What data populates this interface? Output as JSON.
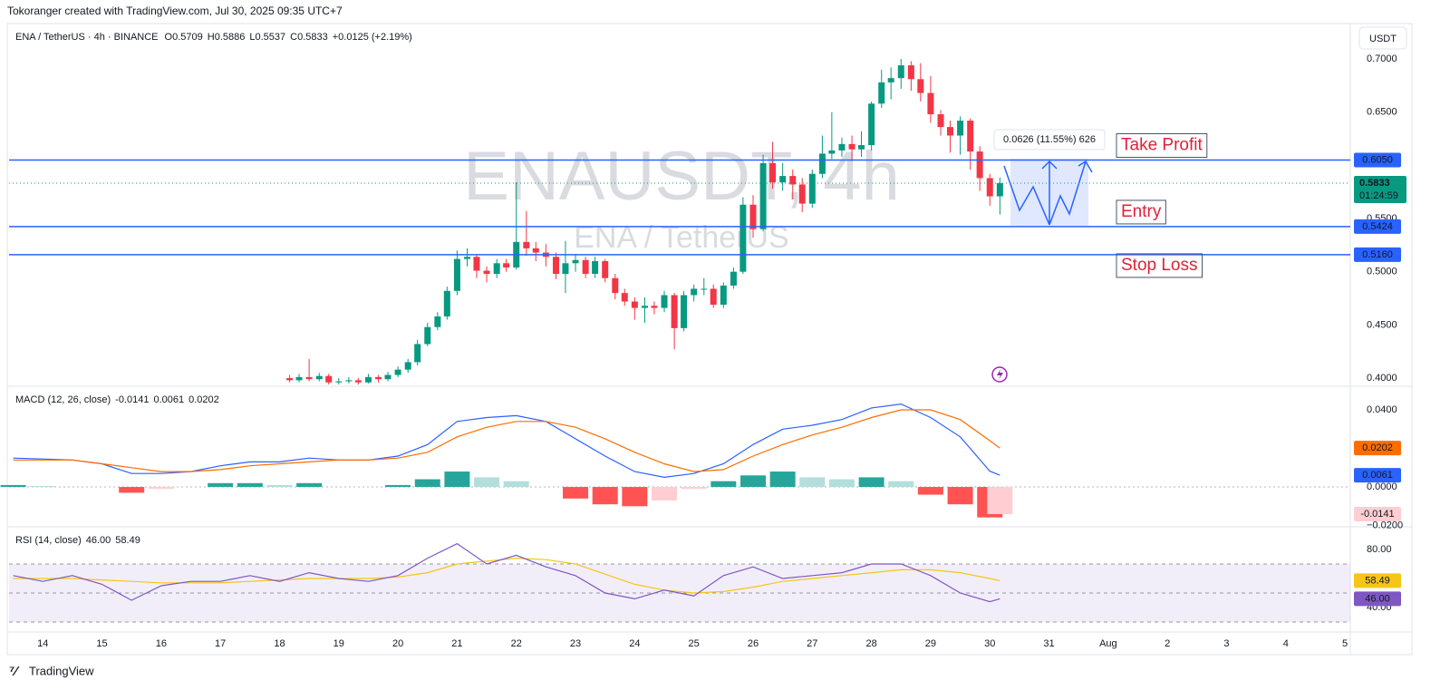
{
  "header": {
    "credit": "Tokoranger created with TradingView.com, Jul 30, 2025 09:35 UTC+7",
    "symbol": "ENA / TetherUS · 4h · BINANCE",
    "ohlc": [
      {
        "label": "O",
        "value": "0.5709"
      },
      {
        "label": "H",
        "value": "0.5886"
      },
      {
        "label": "L",
        "value": "0.5537"
      },
      {
        "label": "C",
        "value": "0.5833"
      }
    ],
    "change": "+0.0125 (+2.19%)",
    "currency": "USDT",
    "watermark": "ENAUSDT, 4h",
    "watermark_sub": "ENA / TetherUS",
    "logo": "TradingView"
  },
  "chart_data": [
    {
      "type": "candlestick",
      "ylim": [
        0.3932,
        0.7324
      ],
      "xlim": [
        13.43,
        36.09
      ],
      "yticks": [
        {
          "value": 0.4,
          "label": "0.4000"
        },
        {
          "value": 0.45,
          "label": "0.4500"
        },
        {
          "value": 0.5,
          "label": "0.5000"
        },
        {
          "value": 0.55,
          "label": "0.5500"
        },
        {
          "value": 0.65,
          "label": "0.6500"
        },
        {
          "value": 0.7,
          "label": "0.7000"
        }
      ],
      "xticks": [
        14,
        15,
        16,
        17,
        18,
        19,
        20,
        21,
        22,
        23,
        24,
        25,
        26,
        27,
        28,
        29,
        30,
        31,
        {
          "value": 32,
          "label": "Aug"
        },
        {
          "value": 33,
          "label": "2"
        },
        {
          "value": 34,
          "label": "3"
        },
        {
          "value": 35,
          "label": "4"
        },
        {
          "value": 36,
          "label": "5"
        }
      ],
      "up_color": "#089981",
      "down_color": "#f23645",
      "x": [
        18.17,
        18.33,
        18.5,
        18.67,
        18.83,
        19,
        19.17,
        19.33,
        19.5,
        19.67,
        19.83,
        20,
        20.17,
        20.33,
        20.5,
        20.67,
        20.83,
        21,
        21.17,
        21.33,
        21.5,
        21.67,
        21.83,
        22,
        22.17,
        22.33,
        22.5,
        22.67,
        22.83,
        23,
        23.17,
        23.33,
        23.5,
        23.67,
        23.83,
        24,
        24.17,
        24.33,
        24.5,
        24.67,
        24.83,
        25,
        25.17,
        25.33,
        25.5,
        25.67,
        25.83,
        26,
        26.17,
        26.33,
        26.5,
        26.67,
        26.83,
        27,
        27.17,
        27.33,
        27.5,
        27.67,
        27.83,
        28,
        28.17,
        28.33,
        28.5,
        28.67,
        28.83,
        29,
        29.17,
        29.33,
        29.5,
        29.67,
        29.83,
        30,
        30.17
      ],
      "open": [
        0.4,
        0.398,
        0.401,
        0.399,
        0.402,
        0.396,
        0.397,
        0.398,
        0.396,
        0.401,
        0.399,
        0.403,
        0.408,
        0.415,
        0.432,
        0.448,
        0.458,
        0.482,
        0.512,
        0.514,
        0.501,
        0.498,
        0.508,
        0.504,
        0.528,
        0.522,
        0.518,
        0.514,
        0.498,
        0.508,
        0.511,
        0.498,
        0.51,
        0.494,
        0.48,
        0.472,
        0.466,
        0.468,
        0.466,
        0.478,
        0.447,
        0.478,
        0.484,
        0.484,
        0.469,
        0.487,
        0.5,
        0.563,
        0.54,
        0.602,
        0.584,
        0.59,
        0.582,
        0.564,
        0.592,
        0.611,
        0.614,
        0.62,
        0.615,
        0.619,
        0.658,
        0.678,
        0.682,
        0.694,
        0.681,
        0.668,
        0.648,
        0.636,
        0.628,
        0.642,
        0.613,
        0.588,
        0.5709
      ],
      "high": [
        0.403,
        0.404,
        0.418,
        0.405,
        0.404,
        0.4,
        0.401,
        0.4,
        0.404,
        0.403,
        0.406,
        0.411,
        0.418,
        0.436,
        0.452,
        0.462,
        0.486,
        0.52,
        0.522,
        0.516,
        0.505,
        0.512,
        0.512,
        0.584,
        0.557,
        0.528,
        0.526,
        0.518,
        0.529,
        0.516,
        0.514,
        0.514,
        0.512,
        0.498,
        0.484,
        0.476,
        0.476,
        0.472,
        0.482,
        0.48,
        0.482,
        0.488,
        0.494,
        0.488,
        0.49,
        0.504,
        0.57,
        0.572,
        0.61,
        0.622,
        0.602,
        0.596,
        0.588,
        0.596,
        0.628,
        0.65,
        0.626,
        0.628,
        0.632,
        0.66,
        0.69,
        0.692,
        0.7,
        0.698,
        0.696,
        0.684,
        0.652,
        0.642,
        0.646,
        0.644,
        0.618,
        0.592,
        0.5886
      ],
      "low": [
        0.396,
        0.396,
        0.397,
        0.397,
        0.394,
        0.394,
        0.395,
        0.394,
        0.395,
        0.396,
        0.397,
        0.401,
        0.405,
        0.412,
        0.43,
        0.445,
        0.455,
        0.478,
        0.505,
        0.494,
        0.49,
        0.494,
        0.5,
        0.502,
        0.515,
        0.51,
        0.505,
        0.493,
        0.48,
        0.5,
        0.494,
        0.494,
        0.49,
        0.474,
        0.468,
        0.455,
        0.452,
        0.46,
        0.462,
        0.427,
        0.444,
        0.472,
        0.478,
        0.466,
        0.466,
        0.484,
        0.498,
        0.532,
        0.538,
        0.578,
        0.576,
        0.568,
        0.556,
        0.56,
        0.588,
        0.606,
        0.608,
        0.604,
        0.608,
        0.614,
        0.654,
        0.662,
        0.672,
        0.67,
        0.66,
        0.64,
        0.628,
        0.612,
        0.61,
        0.596,
        0.576,
        0.562,
        0.5537
      ],
      "close": [
        0.398,
        0.401,
        0.399,
        0.402,
        0.396,
        0.397,
        0.398,
        0.396,
        0.401,
        0.399,
        0.403,
        0.408,
        0.415,
        0.432,
        0.448,
        0.458,
        0.482,
        0.512,
        0.514,
        0.501,
        0.498,
        0.508,
        0.504,
        0.528,
        0.522,
        0.518,
        0.514,
        0.498,
        0.508,
        0.511,
        0.498,
        0.51,
        0.494,
        0.48,
        0.472,
        0.466,
        0.468,
        0.466,
        0.478,
        0.447,
        0.478,
        0.484,
        0.484,
        0.469,
        0.487,
        0.5,
        0.563,
        0.54,
        0.602,
        0.584,
        0.59,
        0.582,
        0.564,
        0.592,
        0.611,
        0.614,
        0.62,
        0.615,
        0.619,
        0.658,
        0.678,
        0.682,
        0.694,
        0.681,
        0.668,
        0.648,
        0.636,
        0.628,
        0.642,
        0.613,
        0.588,
        0.5709,
        0.5833
      ],
      "countdown": "01:24:59",
      "levels": [
        {
          "label": "Take Profit",
          "value": 0.605,
          "value_label": "0.6050"
        },
        {
          "label": "Entry",
          "value": 0.5424,
          "value_label": "0.5424"
        },
        {
          "label": "Stop Loss",
          "value": 0.516,
          "value_label": "0.5160"
        }
      ],
      "measure": "0.0626 (11.55%) 626"
    },
    {
      "type": "macd",
      "title": "MACD (12, 26, close)",
      "ylim": [
        -0.0202,
        0.0513
      ],
      "yticks": [
        {
          "value": 0.04,
          "label": "0.0400"
        },
        {
          "value": 0,
          "label": "0.0000"
        },
        {
          "value": -0.02,
          "label": "−0.0200"
        }
      ],
      "x": [
        13.5,
        14,
        14.5,
        15,
        15.5,
        16,
        16.5,
        17,
        17.5,
        18,
        18.5,
        19,
        19.5,
        20,
        20.5,
        21,
        21.5,
        22,
        22.5,
        23,
        23.5,
        24,
        24.5,
        25,
        25.5,
        26,
        26.5,
        27,
        27.5,
        28,
        28.5,
        29,
        29.5,
        30,
        30.17
      ],
      "series": [
        {
          "name": "histogram",
          "color": "#26a69a",
          "values": [
            0.001,
            0.0005,
            0,
            0,
            -0.003,
            -0.001,
            0,
            0.002,
            0.002,
            0.001,
            0.002,
            0,
            0,
            0.001,
            0.004,
            0.008,
            0.005,
            0.003,
            0,
            -0.006,
            -0.009,
            -0.01,
            -0.007,
            -0.001,
            0.003,
            0.006,
            0.008,
            0.005,
            0.004,
            0.005,
            0.003,
            -0.004,
            -0.009,
            -0.0158,
            -0.0141
          ]
        },
        {
          "name": "macd",
          "color": "#2962ff",
          "values": [
            0.015,
            0.0145,
            0.014,
            0.012,
            0.007,
            0.007,
            0.008,
            0.011,
            0.013,
            0.013,
            0.015,
            0.014,
            0.014,
            0.016,
            0.022,
            0.034,
            0.036,
            0.037,
            0.034,
            0.025,
            0.016,
            0.008,
            0.005,
            0.007,
            0.012,
            0.022,
            0.03,
            0.032,
            0.035,
            0.041,
            0.043,
            0.036,
            0.026,
            0.0082,
            0.0061
          ]
        },
        {
          "name": "signal",
          "color": "#ff6d00",
          "values": [
            0.014,
            0.014,
            0.014,
            0.012,
            0.01,
            0.008,
            0.008,
            0.009,
            0.011,
            0.012,
            0.013,
            0.014,
            0.014,
            0.015,
            0.018,
            0.026,
            0.031,
            0.034,
            0.034,
            0.031,
            0.025,
            0.018,
            0.012,
            0.008,
            0.009,
            0.016,
            0.022,
            0.027,
            0.031,
            0.036,
            0.04,
            0.04,
            0.035,
            0.024,
            0.0202
          ]
        }
      ]
    },
    {
      "type": "rsi",
      "title": "RSI (14, close)",
      "ylim": [
        23.75,
        93.75
      ],
      "yticks": [
        {
          "value": 80,
          "label": "80.00"
        },
        {
          "value": 40,
          "label": "40.00"
        }
      ],
      "bands": [
        70,
        50,
        30
      ],
      "x": [
        13.5,
        14,
        14.5,
        15,
        15.5,
        16,
        16.5,
        17,
        17.5,
        18,
        18.5,
        19,
        19.5,
        20,
        20.5,
        21,
        21.5,
        22,
        22.5,
        23,
        23.5,
        24,
        24.5,
        25,
        25.5,
        26,
        26.5,
        27,
        27.5,
        28,
        28.5,
        29,
        29.5,
        30,
        30.17
      ],
      "series": [
        {
          "name": "rsi",
          "color": "#7e57c2",
          "values": [
            62,
            58,
            62,
            56,
            45,
            55,
            58,
            58,
            62,
            58,
            64,
            60,
            58,
            62,
            74,
            84,
            70,
            76,
            68,
            62,
            50,
            46,
            52,
            48,
            62,
            68,
            60,
            62,
            64,
            70,
            70,
            62,
            50,
            44,
            46
          ],
          "last_label": "46.00"
        },
        {
          "name": "ma",
          "color": "#f5c518",
          "values": [
            60,
            60,
            60,
            59,
            58,
            57,
            57,
            57,
            58,
            59,
            60,
            60,
            60,
            61,
            64,
            70,
            72,
            74,
            73,
            70,
            63,
            56,
            52,
            50,
            51,
            54,
            58,
            60,
            62,
            64,
            66,
            66,
            64,
            60,
            58.49
          ]
        }
      ]
    }
  ]
}
